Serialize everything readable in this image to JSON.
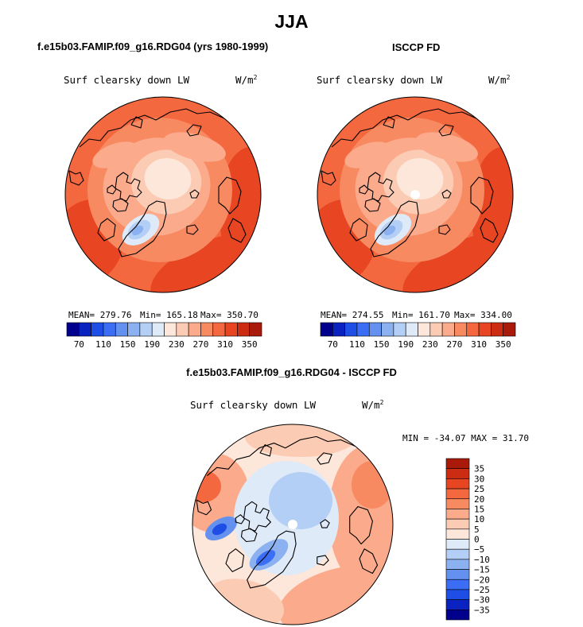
{
  "page": {
    "title": "JJA"
  },
  "panels": {
    "model": {
      "title": "f.e15b03.FAMIP.f09_g16.RDG04 (yrs 1980-1999)",
      "variable": "Surf clearsky down LW",
      "units": "W/m",
      "units_exp": "2",
      "stats": {
        "mean": "MEAN= 279.76",
        "min": "Min= 165.18",
        "max": "Max= 350.70"
      }
    },
    "obs": {
      "title": "ISCCP FD",
      "variable": "Surf clearsky down LW",
      "units": "W/m",
      "units_exp": "2",
      "stats": {
        "mean": "MEAN= 274.55",
        "min": "Min= 161.70",
        "max": "Max= 334.00"
      }
    },
    "diff": {
      "title": "f.e15b03.FAMIP.f09_g16.RDG04 - ISCCP FD",
      "variable": "Surf clearsky down LW",
      "units": "W/m",
      "units_exp": "2",
      "minmax": "MIN = -34.07 MAX =  31.70"
    }
  },
  "chart_data": [
    {
      "type": "heatmap",
      "projection": "polar-stereographic-north",
      "title": "f.e15b03.FAMIP.f09_g16.RDG04 (yrs 1980-1999)",
      "variable": "Surf clearsky down LW",
      "units": "W/m2",
      "mean": 279.76,
      "min": 165.18,
      "max": 350.7,
      "levels": [
        70,
        90,
        110,
        130,
        150,
        170,
        190,
        210,
        230,
        250,
        270,
        290,
        310,
        330,
        350
      ],
      "colorbar_labels": [
        "70",
        "110",
        "150",
        "190",
        "230",
        "270",
        "310",
        "350"
      ],
      "colors": [
        "#00008c",
        "#0a22c0",
        "#1e4ee6",
        "#3c6ef5",
        "#6491f0",
        "#8cb1f0",
        "#b4cff5",
        "#dfeaf8",
        "#fde6da",
        "#fccbb4",
        "#fbab8c",
        "#f88a62",
        "#f4683f",
        "#e84522",
        "#cc2d12",
        "#a91a0a"
      ]
    },
    {
      "type": "heatmap",
      "projection": "polar-stereographic-north",
      "title": "ISCCP FD",
      "variable": "Surf clearsky down LW",
      "units": "W/m2",
      "mean": 274.55,
      "min": 161.7,
      "max": 334.0,
      "levels": [
        70,
        90,
        110,
        130,
        150,
        170,
        190,
        210,
        230,
        250,
        270,
        290,
        310,
        330,
        350
      ],
      "colorbar_labels": [
        "70",
        "110",
        "150",
        "190",
        "230",
        "270",
        "310",
        "350"
      ],
      "colors": [
        "#00008c",
        "#0a22c0",
        "#1e4ee6",
        "#3c6ef5",
        "#6491f0",
        "#8cb1f0",
        "#b4cff5",
        "#dfeaf8",
        "#fde6da",
        "#fccbb4",
        "#fbab8c",
        "#f88a62",
        "#f4683f",
        "#e84522",
        "#cc2d12",
        "#a91a0a"
      ]
    },
    {
      "type": "heatmap",
      "projection": "polar-stereographic-north",
      "title": "f.e15b03.FAMIP.f09_g16.RDG04 - ISCCP FD",
      "variable": "Surf clearsky down LW",
      "units": "W/m2",
      "min": -34.07,
      "max": 31.7,
      "levels": [
        -35,
        -30,
        -25,
        -20,
        -15,
        -10,
        -5,
        0,
        5,
        10,
        15,
        20,
        25,
        30,
        35
      ],
      "colorbar_labels": [
        "35",
        "30",
        "25",
        "20",
        "15",
        "10",
        "5",
        "0",
        "−5",
        "−10",
        "−15",
        "−20",
        "−25",
        "−30",
        "−35"
      ],
      "colors": [
        "#00008c",
        "#0a22c0",
        "#1e4ee6",
        "#3c6ef5",
        "#6491f0",
        "#8cb1f0",
        "#b4cff5",
        "#dfeaf8",
        "#fde6da",
        "#fccbb4",
        "#fbab8c",
        "#f88a62",
        "#f4683f",
        "#e84522",
        "#cc2d12",
        "#a91a0a"
      ]
    }
  ]
}
